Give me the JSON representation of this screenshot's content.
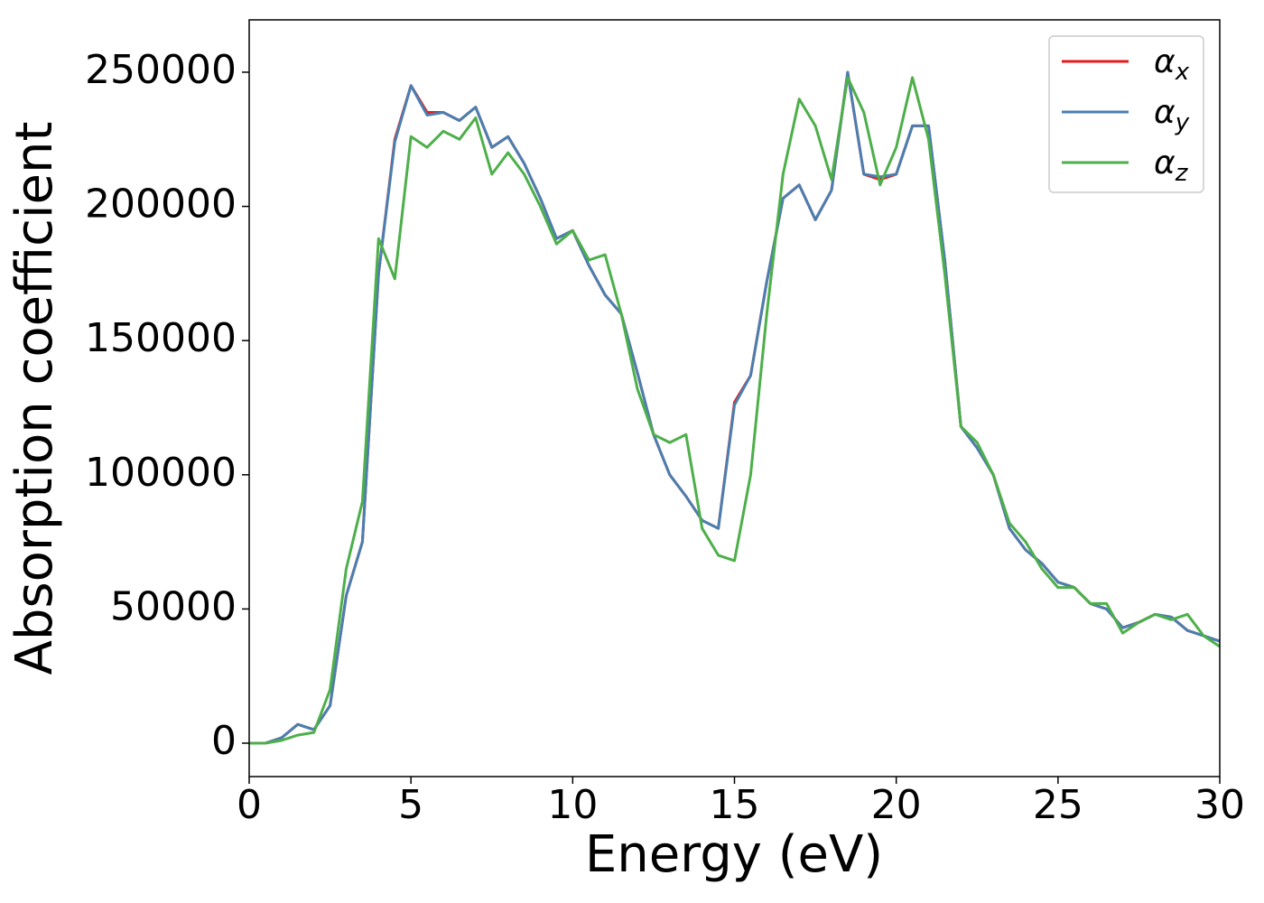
{
  "chart_data": {
    "type": "line",
    "xlabel": "Energy (eV)",
    "ylabel": "Absorption coefficient",
    "x": [
      0,
      0.5,
      1,
      1.5,
      2,
      2.5,
      3,
      3.5,
      4,
      4.5,
      5,
      5.5,
      6,
      6.5,
      7,
      7.5,
      8,
      8.5,
      9,
      9.5,
      10,
      10.5,
      11,
      11.5,
      12,
      12.5,
      13,
      13.5,
      14,
      14.5,
      15,
      15.5,
      16,
      16.5,
      17,
      17.5,
      18,
      18.5,
      19,
      19.5,
      20,
      20.5,
      21,
      21.5,
      22,
      22.5,
      23,
      23.5,
      24,
      24.5,
      25,
      25.5,
      26,
      26.5,
      27,
      27.5,
      28,
      28.5,
      29,
      29.5,
      30
    ],
    "series": [
      {
        "name": "αx",
        "color": "#e41a1c",
        "values": [
          0,
          0,
          2000,
          7000,
          5000,
          14000,
          55000,
          75000,
          175000,
          225000,
          245000,
          235000,
          235000,
          232000,
          237000,
          222000,
          226000,
          216000,
          203000,
          188000,
          191000,
          178000,
          167000,
          160000,
          138000,
          115000,
          100000,
          92000,
          83000,
          80000,
          127000,
          137000,
          172000,
          203000,
          208000,
          195000,
          206000,
          250000,
          212000,
          210000,
          212000,
          230000,
          230000,
          180000,
          118000,
          110000,
          100000,
          80000,
          72000,
          67000,
          60000,
          58000,
          52000,
          50000,
          43000,
          45000,
          48000,
          47000,
          42000,
          40000,
          38000
        ]
      },
      {
        "name": "αy",
        "color": "#4a7fb0",
        "values": [
          0,
          0,
          2000,
          7000,
          5000,
          14000,
          55000,
          75000,
          175000,
          224000,
          245000,
          234000,
          235000,
          232000,
          237000,
          222000,
          226000,
          216000,
          203000,
          188000,
          191000,
          178000,
          167000,
          160000,
          138000,
          115000,
          100000,
          92000,
          83000,
          80000,
          126000,
          137000,
          172000,
          203000,
          208000,
          195000,
          206000,
          250000,
          212000,
          211000,
          212000,
          230000,
          230000,
          180000,
          118000,
          110000,
          100000,
          80000,
          72000,
          67000,
          60000,
          58000,
          52000,
          50000,
          43000,
          45000,
          48000,
          47000,
          42000,
          40000,
          38000
        ]
      },
      {
        "name": "αz",
        "color": "#4daf4a",
        "values": [
          0,
          0,
          1000,
          3000,
          4000,
          20000,
          65000,
          90000,
          188000,
          173000,
          226000,
          222000,
          228000,
          225000,
          233000,
          212000,
          220000,
          212000,
          200000,
          186000,
          191000,
          180000,
          182000,
          160000,
          132000,
          115000,
          112000,
          115000,
          80000,
          70000,
          68000,
          100000,
          160000,
          212000,
          240000,
          230000,
          210000,
          248000,
          235000,
          208000,
          222000,
          248000,
          225000,
          175000,
          118000,
          112000,
          100000,
          82000,
          75000,
          65000,
          58000,
          58000,
          52000,
          52000,
          41000,
          45000,
          48000,
          46000,
          48000,
          40000,
          36000
        ]
      }
    ],
    "xlim": [
      0,
      30
    ],
    "xticks": [
      0,
      5,
      10,
      15,
      20,
      25,
      30
    ],
    "ylim": [
      -12450,
      269500
    ],
    "yticks": [
      0,
      50000,
      100000,
      150000,
      200000,
      250000
    ],
    "legend": "upper right",
    "grid": false
  }
}
